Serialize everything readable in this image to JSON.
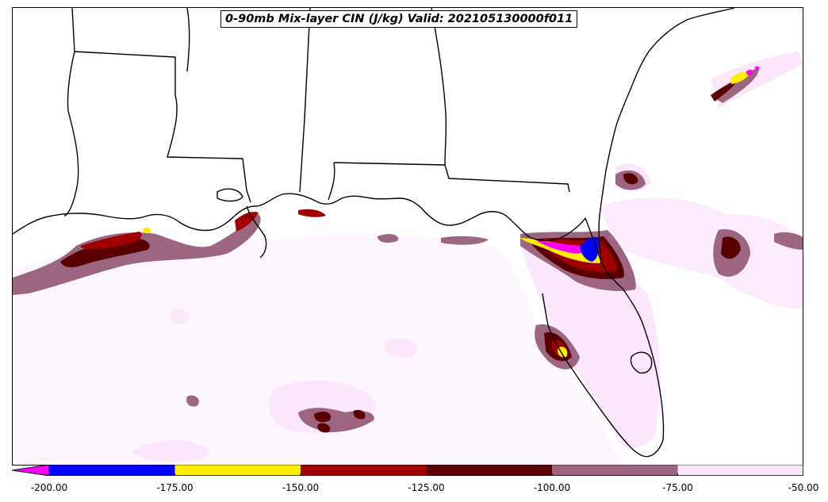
{
  "map": {
    "title": "0-90mb Mix-layer CIN (J/kg) Valid: 202105130000f011",
    "variable": "CIN",
    "units": "J/kg"
  },
  "colorbar": {
    "under_color": "#ff00ff",
    "segments": [
      {
        "from": -200,
        "to": -175,
        "color": "#0000ff"
      },
      {
        "from": -175,
        "to": -150,
        "color": "#ffee00"
      },
      {
        "from": -150,
        "to": -125,
        "color": "#a00000"
      },
      {
        "from": -125,
        "to": -100,
        "color": "#5a0000"
      },
      {
        "from": -100,
        "to": -75,
        "color": "#9c6680"
      },
      {
        "from": -75,
        "to": -50,
        "color": "#fbe6fb"
      }
    ],
    "ticks": [
      "-200.00",
      "-175.00",
      "-150.00",
      "-125.00",
      "-100.00",
      "-75.00",
      "-50.00"
    ]
  }
}
